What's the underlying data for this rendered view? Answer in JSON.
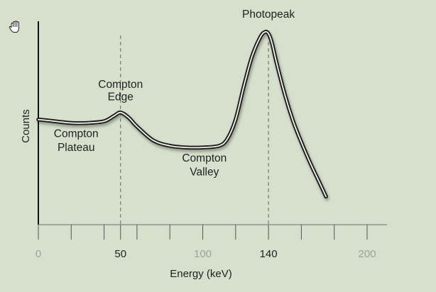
{
  "cursor": {
    "icon": "hand-cursor-icon"
  },
  "chart_data": {
    "type": "line",
    "xlabel": "Energy (keV)",
    "ylabel": "Counts",
    "xlim": [
      0,
      200
    ],
    "x_ticks": [
      {
        "value": 0,
        "label": "0",
        "emphasis": false
      },
      {
        "value": 50,
        "label": "50",
        "emphasis": true
      },
      {
        "value": 100,
        "label": "100",
        "emphasis": false
      },
      {
        "value": 140,
        "label": "140",
        "emphasis": true
      },
      {
        "value": 200,
        "label": "200",
        "emphasis": false
      }
    ],
    "minor_ticks": [
      0,
      20,
      40,
      50,
      60,
      80,
      100,
      120,
      140,
      160,
      180,
      200
    ],
    "y_scale": "relative (no tick labels)",
    "series": [
      {
        "x": [
          0,
          10,
          20,
          30,
          40,
          46,
          50,
          55,
          60,
          70,
          80,
          90,
          100,
          110,
          115,
          120,
          125,
          130,
          135,
          138,
          140,
          142,
          145,
          150,
          155,
          160,
          165,
          170,
          175
        ],
        "y": [
          0.56,
          0.55,
          0.54,
          0.54,
          0.55,
          0.58,
          0.6,
          0.57,
          0.52,
          0.44,
          0.41,
          0.4,
          0.4,
          0.41,
          0.45,
          0.56,
          0.75,
          0.92,
          1.03,
          1.06,
          1.05,
          1.0,
          0.88,
          0.7,
          0.55,
          0.43,
          0.32,
          0.22,
          0.12
        ]
      }
    ],
    "reference_lines": [
      {
        "x": 50,
        "style": "dashed"
      },
      {
        "x": 140,
        "style": "dashed"
      }
    ],
    "annotations": [
      {
        "text": "Photopeak",
        "x": 140,
        "y": 1.14
      },
      {
        "text": "Compton",
        "x": 50,
        "y": 0.74
      },
      {
        "text": "Edge",
        "x": 50,
        "y": 0.67
      },
      {
        "text": "Compton",
        "x": 23,
        "y": 0.46
      },
      {
        "text": "Plateau",
        "x": 23,
        "y": 0.38
      },
      {
        "text": "Compton",
        "x": 101,
        "y": 0.32
      },
      {
        "text": "Valley",
        "x": 101,
        "y": 0.24
      }
    ],
    "colors": {
      "background": "#d6e0cc",
      "axis": "#111111",
      "curve_outer": "#1a1a1a",
      "curve_inner": "#f4f4ec",
      "reference_line": "#6e6e6e"
    }
  }
}
